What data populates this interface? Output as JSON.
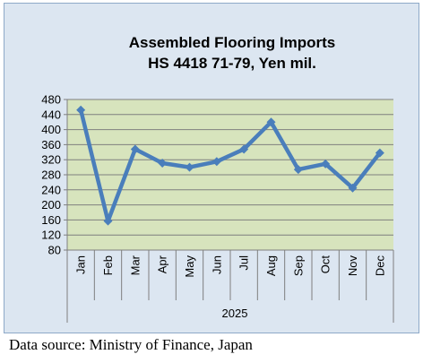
{
  "chart_data": {
    "type": "line",
    "title_lines": [
      "Assembled Flooring Imports",
      "HS 4418 71-79, Yen mil."
    ],
    "categories": [
      "Jan",
      "Feb",
      "Mar",
      "Apr",
      "May",
      "Jun",
      "Jul",
      "Aug",
      "Sep",
      "Oct",
      "Nov",
      "Dec"
    ],
    "group_label": "2025",
    "series": [
      {
        "values": [
          452,
          157,
          348,
          311,
          300,
          315,
          348,
          420,
          294,
          309,
          245,
          338
        ],
        "color": "#4a7ebb"
      }
    ],
    "yticks": [
      480,
      440,
      400,
      360,
      320,
      280,
      240,
      200,
      160,
      120,
      80
    ],
    "ylim": [
      80,
      480
    ],
    "grid": true,
    "legend": "none",
    "plot_background": "#d7e4bd",
    "chart_background": "#dce6f1",
    "gridline_color": "#7f7f7f"
  },
  "source_note": "Data source: Ministry of Finance, Japan"
}
